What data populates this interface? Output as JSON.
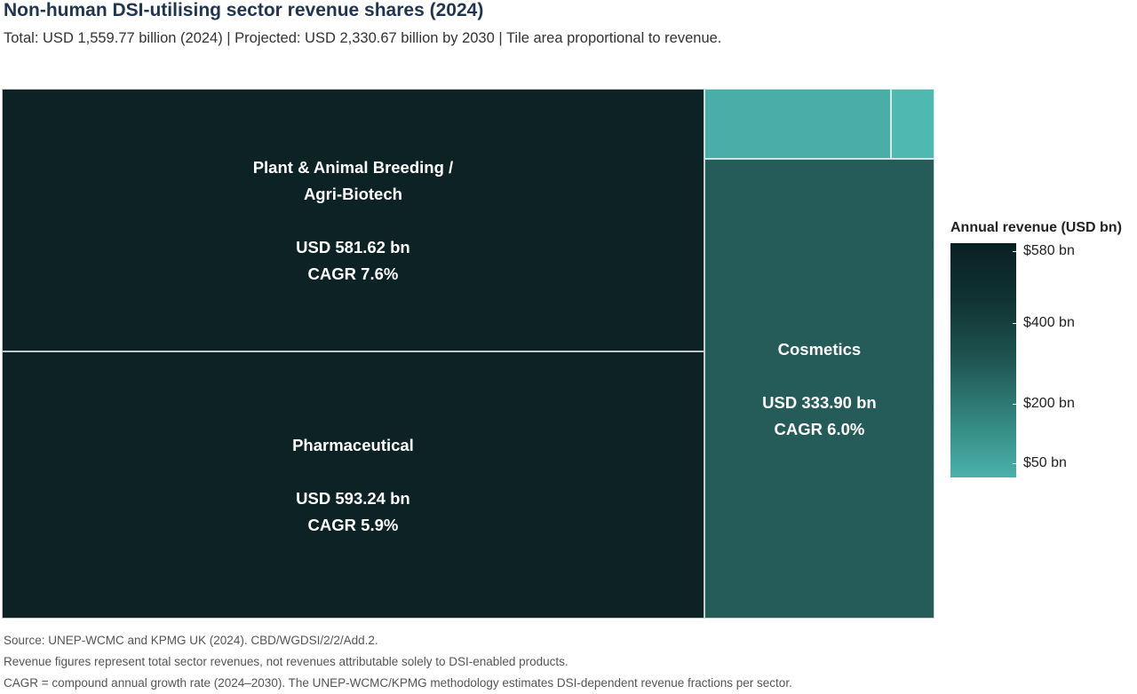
{
  "chart_data": {
    "type": "treemap",
    "title": "Non-human DSI-utilising sector revenue shares (2024)",
    "subtitle": "Total: USD 1,559.77 billion (2024) | Projected: USD 2,330.67 billion by 2030 | Tile area proportional to revenue.",
    "tiles": [
      {
        "name_lines": [
          "Plant & Animal Breeding /",
          "Agri-Biotech"
        ],
        "value_text": "USD 581.62 bn",
        "cagr_text": "CAGR 7.6%",
        "value": 581.62,
        "color": "#0c2225"
      },
      {
        "name_lines": [
          "Pharmaceutical"
        ],
        "value_text": "USD 593.24 bn",
        "cagr_text": "CAGR 5.9%",
        "value": 593.24,
        "color": "#0c2225"
      },
      {
        "name_lines": [
          "Cosmetics"
        ],
        "value_text": "USD 333.90 bn",
        "cagr_text": "CAGR 6.0%",
        "value": 333.9,
        "color": "#255c59"
      },
      {
        "name_lines": [],
        "value_text": "",
        "cagr_text": "",
        "value": 41.3,
        "color": "#49aea8"
      },
      {
        "name_lines": [],
        "value_text": "",
        "cagr_text": "",
        "value": 9.7,
        "color": "#4fb8b1"
      }
    ],
    "legend": {
      "title": "Annual revenue (USD bn)",
      "range": [
        15,
        600
      ],
      "ticks": [
        {
          "value": 580,
          "label": "$580 bn"
        },
        {
          "value": 400,
          "label": "$400 bn"
        },
        {
          "value": 200,
          "label": "$200 bn"
        },
        {
          "value": 50,
          "label": "$50 bn"
        }
      ]
    }
  },
  "footnotes": [
    "Source: UNEP-WCMC and KPMG UK (2024). CBD/WGDSI/2/2/Add.2.",
    "Revenue figures represent total sector revenues, not revenues attributable solely to DSI-enabled products.",
    "CAGR = compound annual growth rate (2024–2030). The UNEP-WCMC/KPMG methodology estimates DSI-dependent revenue fractions per sector."
  ]
}
